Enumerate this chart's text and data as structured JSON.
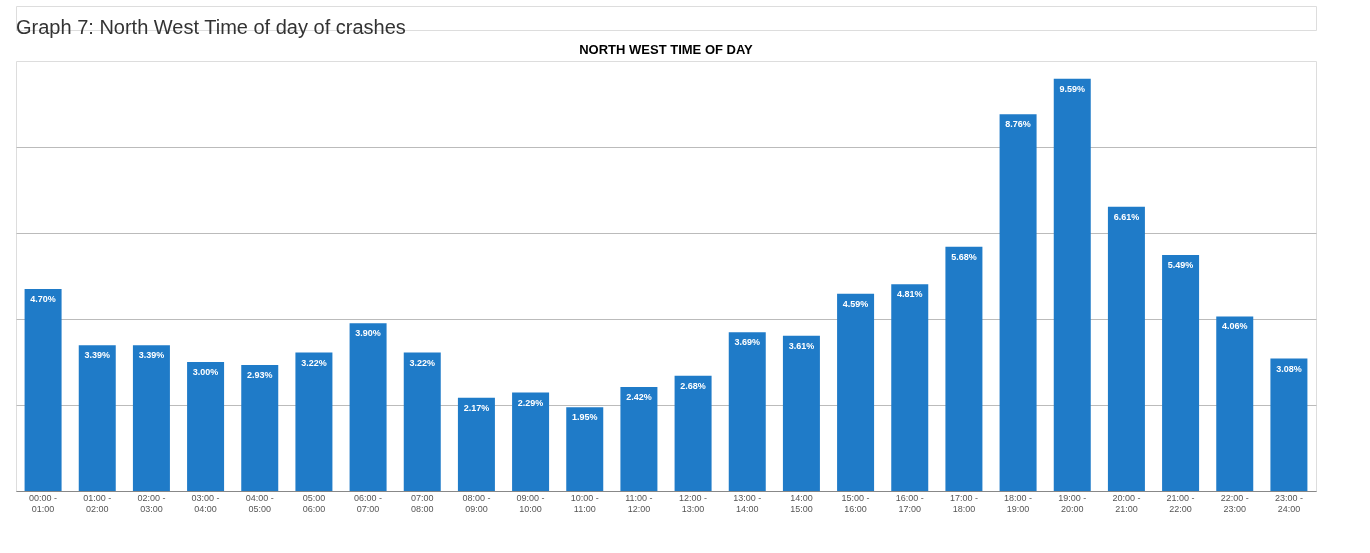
{
  "chart_data": {
    "type": "bar",
    "title": "NORTH WEST TIME OF DAY",
    "annotations": [
      "Graph 7: North West Time of day of crashes"
    ],
    "categories": [
      "00:00 -\n01:00",
      "01:00 -\n02:00",
      "02:00 -\n03:00",
      "03:00 -\n04:00",
      "04:00 -\n05:00",
      "05:00\n06:00",
      "06:00 -\n07:00",
      "07:00\n08:00",
      "08:00 -\n09:00",
      "09:00 -\n10:00",
      "10:00 -\n11:00",
      "11:00 -\n12:00",
      "12:00 -\n13:00",
      "13:00 -\n14:00",
      "14:00\n15:00",
      "15:00 -\n16:00",
      "16:00 -\n17:00",
      "17:00 -\n18:00",
      "18:00 -\n19:00",
      "19:00 -\n20:00",
      "20:00 -\n21:00",
      "21:00 -\n22:00",
      "22:00 -\n23:00",
      "23:00 -\n24:00"
    ],
    "values": [
      4.7,
      3.39,
      3.39,
      3.0,
      2.93,
      3.22,
      3.9,
      3.22,
      2.17,
      2.29,
      1.95,
      2.42,
      2.68,
      3.69,
      3.61,
      4.59,
      4.81,
      5.68,
      8.76,
      9.59,
      6.61,
      5.49,
      4.06,
      3.08
    ],
    "value_labels": [
      "4.70%",
      "3.39%",
      "3.39%",
      "3.00%",
      "2.93%",
      "3.22%",
      "3.90%",
      "3.22%",
      "2.17%",
      "2.29%",
      "1.95%",
      "2.42%",
      "2.68%",
      "3.69%",
      "3.61%",
      "4.59%",
      "4.81%",
      "5.68%",
      "8.76%",
      "9.59%",
      "6.61%",
      "5.49%",
      "4.06%",
      "3.08%"
    ],
    "color": "#1f7bc8",
    "ylim": [
      0,
      10
    ],
    "yticks": [
      {
        "value": 0,
        "label": null
      },
      {
        "value": 2,
        "label": null
      },
      {
        "value": 4,
        "label": null
      },
      {
        "value": 6,
        "label": null
      },
      {
        "value": 8,
        "label": null
      }
    ],
    "grid": "y",
    "tick_labels": "x"
  }
}
